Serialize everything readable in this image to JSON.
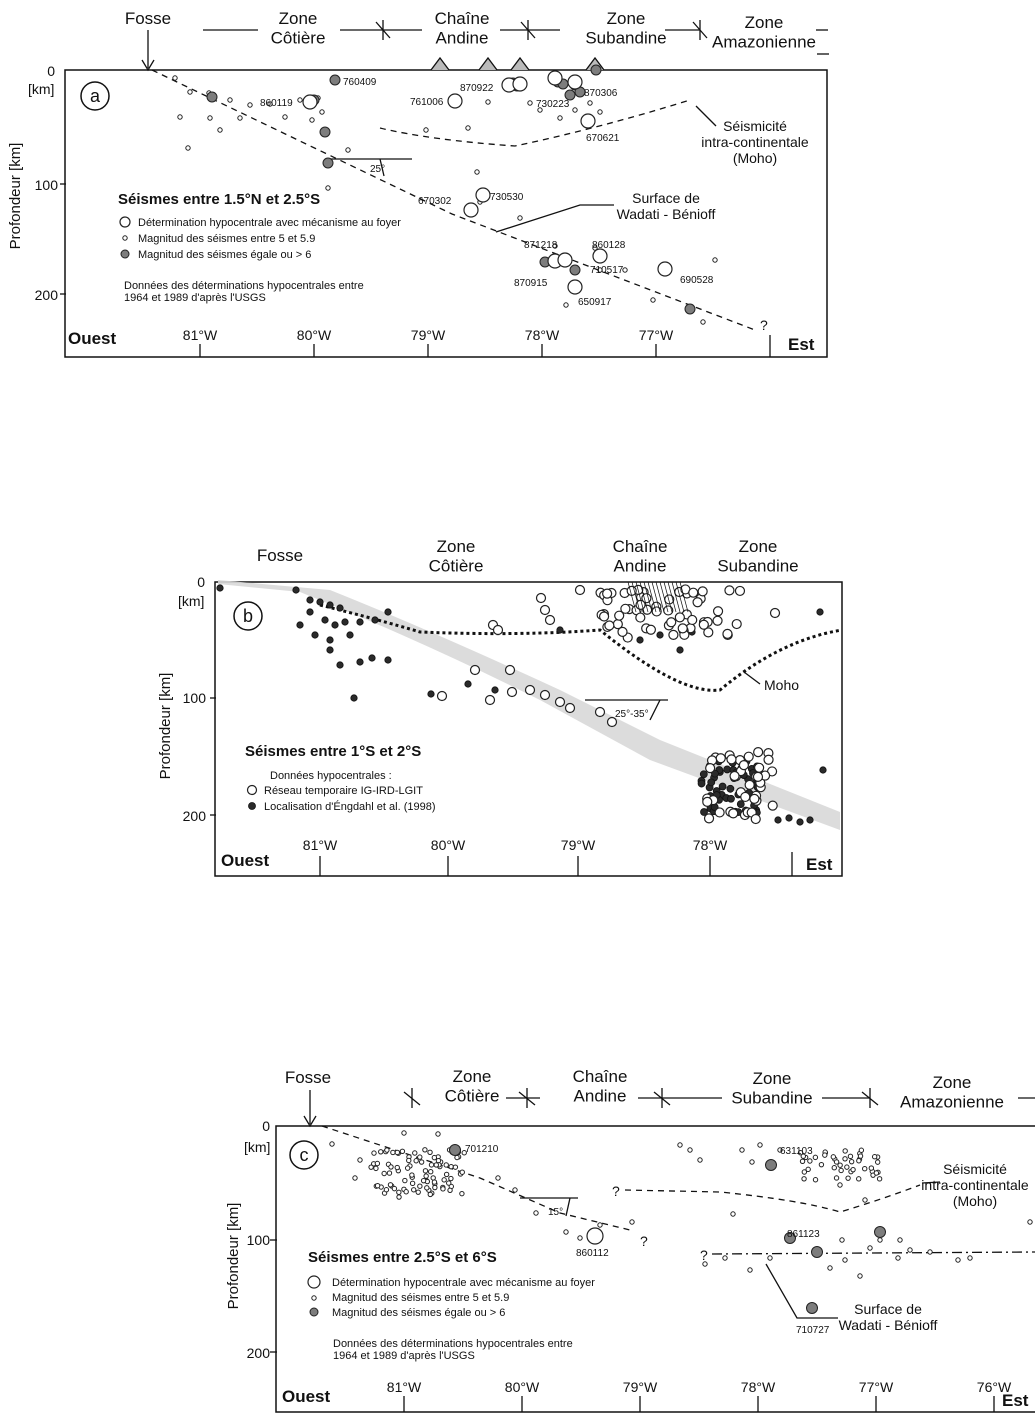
{
  "panels": [
    {
      "id": "a",
      "label": "a",
      "zones": [
        "Fosse",
        "Zone\nCôtière",
        "Chaîne\nAndine",
        "Zone\nSubandine",
        "Zone\nAmazonienne"
      ],
      "y_axis_label": "Profondeur [km]",
      "y_unit": "[km]",
      "y_ticks": [
        "0",
        "100",
        "200"
      ],
      "x_ticks": [
        "81°W",
        "80°W",
        "79°W",
        "78°W",
        "77°W"
      ],
      "west_label": "Ouest",
      "east_label": "Est",
      "title": "Séismes entre 1.5°N et 2.5°S",
      "legend": [
        "Détermination hypocentrale avec mécanisme au foyer",
        "Magnitud des séismes entre 5 et 5.9",
        "Magnitud des séismes égale ou > 6"
      ],
      "source": [
        "Données des déterminations hypocentrales entre",
        "1964 et 1989 d'après l'USGS"
      ],
      "angle": "25°",
      "annotations": [
        "Séismicité\nintra-continentale\n(Moho)",
        "Surface de\nWadati - Bénioff"
      ],
      "event_ids": [
        "760409",
        "870922",
        "870306",
        "761006",
        "730223",
        "860119",
        "670621",
        "670302",
        "730530",
        "871218",
        "860128",
        "870915",
        "710517",
        "690528",
        "650917"
      ]
    },
    {
      "id": "b",
      "label": "b",
      "zones": [
        "Fosse",
        "Zone\nCôtière",
        "Chaîne\nAndine",
        "Zone\nSubandine"
      ],
      "y_axis_label": "Profondeur [km]",
      "y_unit": "[km]",
      "y_ticks": [
        "0",
        "100",
        "200"
      ],
      "x_ticks": [
        "81°W",
        "80°W",
        "79°W",
        "78°W"
      ],
      "west_label": "Ouest",
      "east_label": "Est",
      "title": "Séismes entre 1°S et 2°S",
      "legend_head": "Données hypocentrales :",
      "legend": [
        "Réseau temporaire IG-IRD-LGIT",
        "Localisation d'Éngdahl et al. (1998)"
      ],
      "angle": "25°-35°",
      "annotations": [
        "Moho"
      ]
    },
    {
      "id": "c",
      "label": "c",
      "zones": [
        "Fosse",
        "Zone\nCôtière",
        "Chaîne\nAndine",
        "Zone\nSubandine",
        "Zone\nAmazonienne"
      ],
      "y_axis_label": "Profondeur [km]",
      "y_unit": "[km]",
      "y_ticks": [
        "0",
        "100",
        "200"
      ],
      "x_ticks": [
        "81°W",
        "80°W",
        "79°W",
        "78°W",
        "77°W",
        "76°W"
      ],
      "west_label": "Ouest",
      "east_label": "Est",
      "title": "Séismes entre 2.5°S et 6°S",
      "legend": [
        "Détermination hypocentrale avec mécanisme au foyer",
        "Magnitud des séismes entre 5 et 5.9",
        "Magnitud des séismes égale ou > 6"
      ],
      "source": [
        "Données des déterminations hypocentrales entre",
        "1964 et 1989 d'après l'USGS"
      ],
      "angle": "15°",
      "annotations": [
        "Séismicité\nintra-continentale\n(Moho)",
        "Surface de\nWadati - Bénioff"
      ],
      "event_ids": [
        "701210",
        "631103",
        "860112",
        "861123",
        "710727"
      ]
    }
  ]
}
